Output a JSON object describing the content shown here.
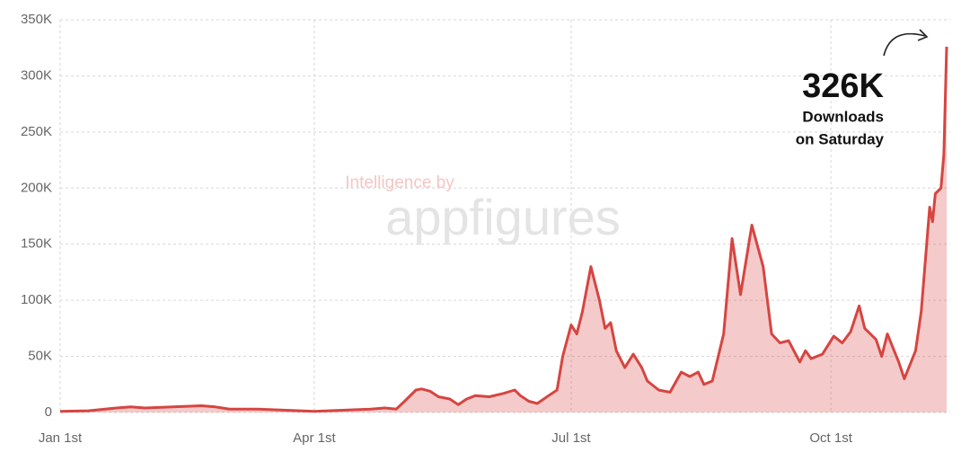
{
  "chart_data": {
    "type": "area",
    "x": [
      0,
      10,
      20,
      25,
      30,
      40,
      50,
      55,
      60,
      70,
      80,
      90,
      100,
      110,
      115,
      119,
      122,
      126,
      128,
      131,
      134,
      138,
      141,
      144,
      147,
      152,
      157,
      161,
      163,
      166,
      169,
      173,
      176,
      178,
      181,
      183,
      185,
      188,
      191,
      193,
      195,
      197,
      200,
      203,
      206,
      208,
      212,
      216,
      220,
      223,
      226,
      228,
      231,
      235,
      238,
      241,
      245,
      249,
      252,
      255,
      258,
      262,
      264,
      266,
      270,
      274,
      277,
      280,
      283,
      285,
      289,
      291,
      293,
      297,
      299,
      303,
      305,
      308,
      309,
      310,
      312,
      313,
      314
    ],
    "values": [
      1000,
      1500,
      4000,
      5000,
      4000,
      5000,
      6000,
      5000,
      3000,
      3000,
      2000,
      1000,
      2000,
      3000,
      4000,
      3000,
      10000,
      20000,
      21000,
      19000,
      14000,
      12000,
      7000,
      12000,
      15000,
      14000,
      17000,
      20000,
      15000,
      10000,
      8000,
      15000,
      20000,
      50000,
      78000,
      70000,
      90000,
      130000,
      100000,
      75000,
      80000,
      55000,
      40000,
      52000,
      40000,
      28000,
      20000,
      18000,
      36000,
      32000,
      36000,
      25000,
      28000,
      70000,
      155000,
      105000,
      167000,
      130000,
      70000,
      62000,
      64000,
      45000,
      55000,
      48000,
      52000,
      68000,
      62000,
      72000,
      95000,
      75000,
      65000,
      50000,
      70000,
      45000,
      30000,
      55000,
      90000,
      183000,
      170000,
      195000,
      200000,
      230000,
      326000
    ],
    "color": "#d64541",
    "xlim": [
      0,
      314
    ],
    "xticks": [
      {
        "value": 0,
        "label": "Jan 1st"
      },
      {
        "value": 90,
        "label": "Apr 1st"
      },
      {
        "value": 181,
        "label": "Jul 1st"
      },
      {
        "value": 273,
        "label": "Oct 1st"
      }
    ],
    "ylim": [
      0,
      350000
    ],
    "yticks": [
      0,
      {
        "value": 50000,
        "label": "50K"
      },
      {
        "value": 100000,
        "label": "100K"
      },
      {
        "value": 150000,
        "label": "150K"
      },
      {
        "value": 200000,
        "label": "200K"
      },
      {
        "value": 250000,
        "label": "250K"
      },
      {
        "value": 300000,
        "label": "300K"
      },
      {
        "value": 350000,
        "label": "350K"
      }
    ],
    "grid": true,
    "annotations": [
      "326K",
      "Downloads",
      "on Saturday"
    ],
    "watermark": [
      "Intelligence by",
      "appfigures"
    ]
  }
}
